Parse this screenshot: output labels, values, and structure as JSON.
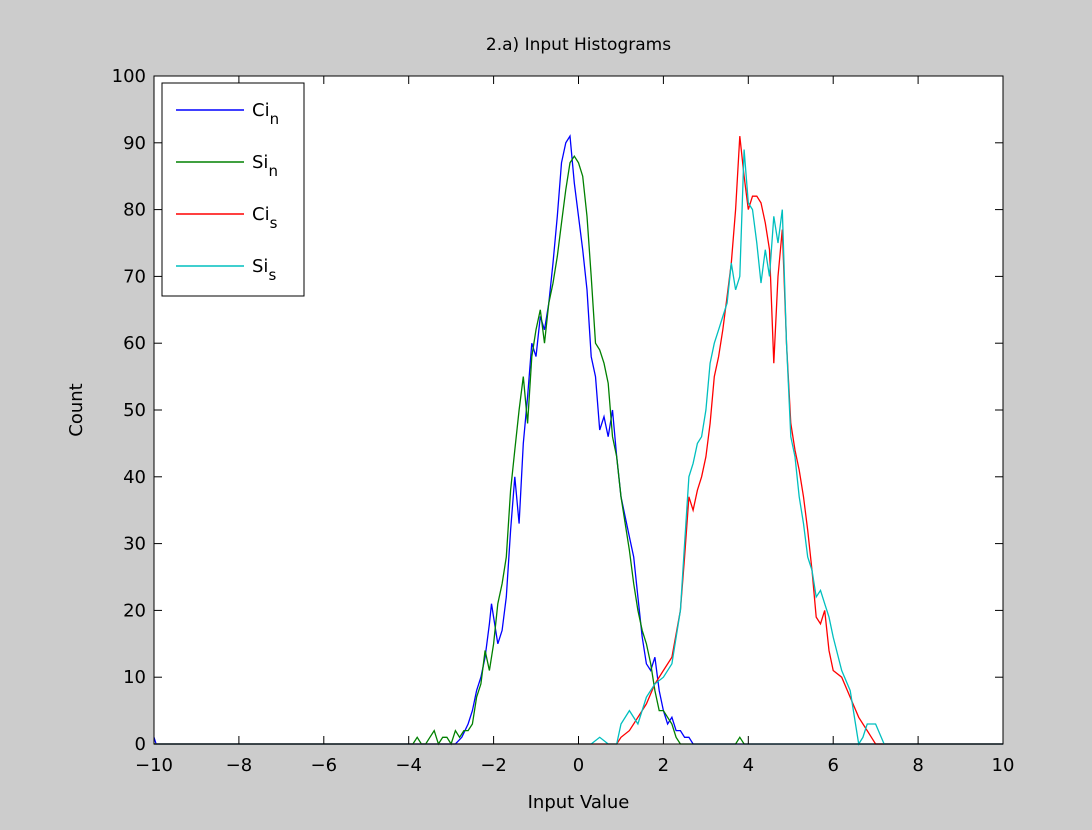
{
  "figure": {
    "background": "#cccccc",
    "axes_background": "#ffffff"
  },
  "chart_data": {
    "type": "line",
    "title": "2.a) Input Histograms",
    "xlabel": "Input Value",
    "ylabel": "Count",
    "xlim": [
      -10,
      10
    ],
    "ylim": [
      0,
      100
    ],
    "xticks": [
      -10,
      -8,
      -6,
      -4,
      -2,
      0,
      2,
      4,
      6,
      8,
      10
    ],
    "yticks": [
      0,
      10,
      20,
      30,
      40,
      50,
      60,
      70,
      80,
      90,
      100
    ],
    "grid": false,
    "legend_position": "top-left",
    "series": [
      {
        "name": "Ci",
        "subscript": "n",
        "color": "#0000ff",
        "x": [
          -10,
          -9.95,
          -3.8,
          -3.5,
          -3.2,
          -3.0,
          -2.9,
          -2.75,
          -2.6,
          -2.5,
          -2.4,
          -2.3,
          -2.2,
          -2.1,
          -2.05,
          -2.0,
          -1.9,
          -1.8,
          -1.7,
          -1.6,
          -1.5,
          -1.4,
          -1.3,
          -1.2,
          -1.1,
          -1.0,
          -0.9,
          -0.8,
          -0.7,
          -0.6,
          -0.5,
          -0.4,
          -0.3,
          -0.2,
          -0.1,
          0.0,
          0.1,
          0.2,
          0.3,
          0.4,
          0.5,
          0.6,
          0.7,
          0.8,
          0.9,
          1.0,
          1.1,
          1.2,
          1.3,
          1.4,
          1.5,
          1.6,
          1.7,
          1.8,
          1.9,
          2.0,
          2.1,
          2.2,
          2.3,
          2.4,
          2.5,
          2.6,
          2.7,
          2.8,
          2.9,
          3.0,
          3.1,
          3.2,
          10
        ],
        "y": [
          1,
          0,
          0,
          0,
          0,
          0,
          0,
          1,
          3,
          5,
          8,
          10,
          13,
          18,
          21,
          19,
          15,
          17,
          22,
          32,
          40,
          33,
          45,
          52,
          60,
          58,
          64,
          62,
          66,
          72,
          79,
          87,
          90,
          91,
          84,
          79,
          74,
          68,
          58,
          55,
          47,
          49,
          46,
          50,
          43,
          37,
          34,
          31,
          28,
          22,
          16,
          12,
          11,
          13,
          8,
          5,
          3,
          4,
          2,
          2,
          1,
          1,
          0,
          0,
          0,
          0,
          0,
          0,
          0
        ]
      },
      {
        "name": "Si",
        "subscript": "n",
        "color": "#008000",
        "x": [
          -10,
          -3.9,
          -3.8,
          -3.7,
          -3.6,
          -3.5,
          -3.4,
          -3.3,
          -3.2,
          -3.1,
          -3.0,
          -2.9,
          -2.8,
          -2.7,
          -2.6,
          -2.5,
          -2.4,
          -2.3,
          -2.2,
          -2.1,
          -2.0,
          -1.9,
          -1.8,
          -1.7,
          -1.6,
          -1.5,
          -1.4,
          -1.3,
          -1.2,
          -1.1,
          -1.0,
          -0.9,
          -0.8,
          -0.7,
          -0.6,
          -0.5,
          -0.4,
          -0.3,
          -0.2,
          -0.1,
          0.0,
          0.1,
          0.2,
          0.3,
          0.4,
          0.5,
          0.6,
          0.7,
          0.8,
          0.9,
          1.0,
          1.1,
          1.2,
          1.3,
          1.4,
          1.5,
          1.6,
          1.7,
          1.8,
          1.9,
          2.0,
          2.1,
          2.2,
          2.3,
          2.4,
          2.5,
          2.6,
          2.7,
          2.8,
          2.9,
          3.0,
          3.5,
          3.7,
          3.8,
          3.9,
          4.0,
          10
        ],
        "y": [
          0,
          0,
          1,
          0,
          0,
          1,
          2,
          0,
          1,
          1,
          0,
          2,
          1,
          2,
          2,
          3,
          7,
          9,
          14,
          11,
          15,
          21,
          24,
          28,
          38,
          44,
          50,
          55,
          48,
          58,
          62,
          65,
          60,
          66,
          69,
          73,
          78,
          83,
          87,
          88,
          87,
          85,
          79,
          70,
          60,
          59,
          57,
          54,
          46,
          43,
          37,
          33,
          29,
          24,
          20,
          17,
          15,
          12,
          8,
          5,
          5,
          4,
          3,
          1,
          0,
          0,
          0,
          0,
          0,
          0,
          0,
          0,
          0,
          1,
          0,
          0,
          0
        ]
      },
      {
        "name": "Ci",
        "subscript": "s",
        "color": "#ff0000",
        "x": [
          -10,
          0.9,
          1.0,
          1.2,
          1.4,
          1.6,
          1.8,
          2.0,
          2.2,
          2.4,
          2.5,
          2.6,
          2.7,
          2.8,
          2.9,
          3.0,
          3.1,
          3.2,
          3.3,
          3.4,
          3.5,
          3.6,
          3.7,
          3.8,
          3.9,
          4.0,
          4.1,
          4.2,
          4.3,
          4.4,
          4.5,
          4.6,
          4.7,
          4.8,
          4.9,
          5.0,
          5.1,
          5.2,
          5.3,
          5.4,
          5.5,
          5.6,
          5.7,
          5.8,
          5.9,
          6.0,
          6.2,
          6.4,
          6.6,
          6.8,
          6.9,
          7.0,
          10
        ],
        "y": [
          0,
          0,
          1,
          2,
          4,
          6,
          9,
          11,
          13,
          20,
          28,
          37,
          35,
          38,
          40,
          43,
          48,
          55,
          58,
          62,
          67,
          72,
          80,
          91,
          85,
          80,
          82,
          82,
          81,
          78,
          74,
          57,
          70,
          77,
          60,
          48,
          44,
          41,
          37,
          32,
          26,
          19,
          18,
          20,
          14,
          11,
          10,
          7,
          4,
          2,
          1,
          0,
          0
        ]
      },
      {
        "name": "Si",
        "subscript": "s",
        "color": "#00bfbf",
        "x": [
          -10,
          0.3,
          0.5,
          0.7,
          0.9,
          1.0,
          1.2,
          1.4,
          1.6,
          1.8,
          2.0,
          2.2,
          2.4,
          2.5,
          2.6,
          2.7,
          2.8,
          2.9,
          3.0,
          3.1,
          3.2,
          3.3,
          3.4,
          3.5,
          3.6,
          3.7,
          3.8,
          3.9,
          4.0,
          4.1,
          4.2,
          4.3,
          4.4,
          4.5,
          4.6,
          4.7,
          4.8,
          4.9,
          5.0,
          5.1,
          5.2,
          5.3,
          5.4,
          5.5,
          5.6,
          5.7,
          5.8,
          5.9,
          6.0,
          6.2,
          6.4,
          6.6,
          6.7,
          6.8,
          7.0,
          7.2,
          10
        ],
        "y": [
          0,
          0,
          1,
          0,
          0,
          3,
          5,
          3,
          7,
          9,
          10,
          12,
          20,
          30,
          40,
          42,
          45,
          46,
          50,
          57,
          60,
          62,
          64,
          66,
          72,
          68,
          70,
          89,
          81,
          80,
          75,
          69,
          74,
          70,
          79,
          75,
          80,
          60,
          46,
          43,
          37,
          33,
          28,
          26,
          22,
          23,
          21,
          19,
          16,
          11,
          8,
          0,
          1,
          3,
          3,
          0,
          0
        ]
      }
    ]
  }
}
